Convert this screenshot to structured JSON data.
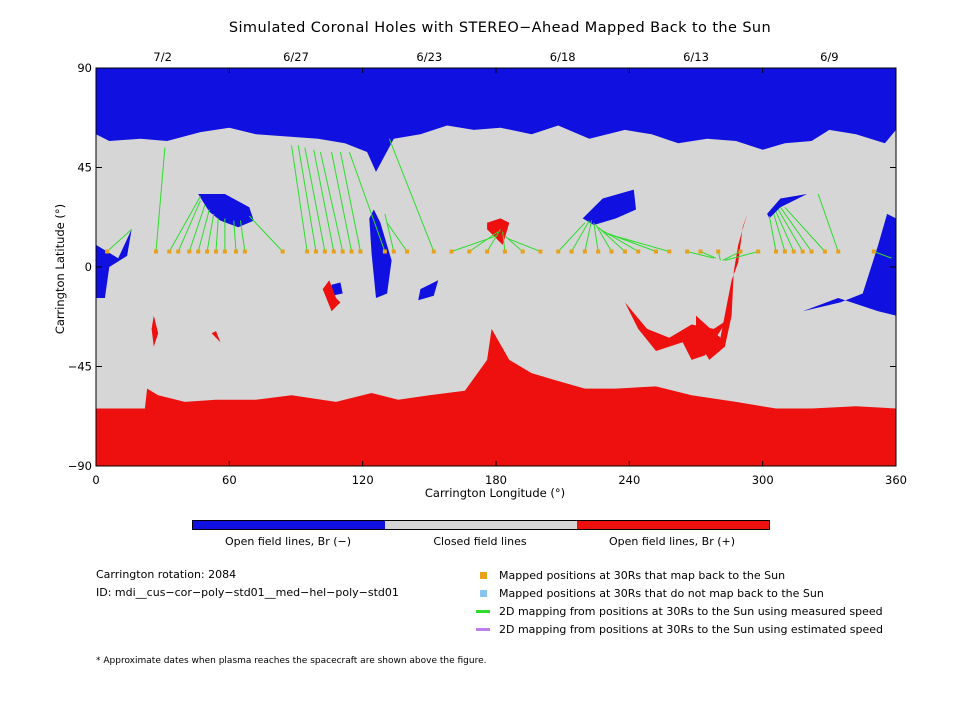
{
  "chart_data": {
    "type": "heatmap",
    "title": "Simulated Coronal Holes with STEREO−Ahead Mapped Back to the Sun",
    "xlabel": "Carrington Longitude (°)",
    "ylabel": "Carrington Latitude (°)",
    "xlim": [
      0,
      360
    ],
    "ylim": [
      -90,
      90
    ],
    "xticks": [
      "0",
      "60",
      "120",
      "180",
      "240",
      "300",
      "360"
    ],
    "yticks": [
      "−90",
      "−45",
      "0",
      "45",
      "90"
    ],
    "top_axis_dates": [
      {
        "label": "7/2",
        "lon": 30
      },
      {
        "label": "6/27",
        "lon": 90
      },
      {
        "label": "6/23",
        "lon": 150
      },
      {
        "label": "6/18",
        "lon": 210
      },
      {
        "label": "6/13",
        "lon": 270
      },
      {
        "label": "6/9",
        "lon": 330
      }
    ],
    "categories": [
      "Open field lines, Br (−)",
      "Closed field lines",
      "Open field lines, Br (+)"
    ],
    "colors": {
      "open_negative": "#1010e0",
      "closed": "#d6d6d6",
      "open_positive": "#ee0f0f",
      "mapped": "#e6a21a",
      "unmapped": "#87c4ee",
      "measured": "#2edc2e",
      "estimated": "#bb80ee"
    },
    "mapping_lines": [
      {
        "lon30": 5,
        "lat30": 7,
        "lon": 16,
        "lat": 17
      },
      {
        "lon30": 27,
        "lat30": 7,
        "lon": 31,
        "lat": 54
      },
      {
        "lon30": 33,
        "lat30": 7,
        "lon": 47,
        "lat": 32
      },
      {
        "lon30": 37,
        "lat30": 7,
        "lon": 47,
        "lat": 30
      },
      {
        "lon30": 42,
        "lat30": 7,
        "lon": 49,
        "lat": 28
      },
      {
        "lon30": 46,
        "lat30": 7,
        "lon": 51,
        "lat": 26
      },
      {
        "lon30": 50,
        "lat30": 7,
        "lon": 53,
        "lat": 24
      },
      {
        "lon30": 54,
        "lat30": 7,
        "lon": 55,
        "lat": 22
      },
      {
        "lon30": 58,
        "lat30": 7,
        "lon": 58,
        "lat": 22
      },
      {
        "lon30": 63,
        "lat30": 7,
        "lon": 62,
        "lat": 21
      },
      {
        "lon30": 67,
        "lat30": 7,
        "lon": 65,
        "lat": 21
      },
      {
        "lon30": 84,
        "lat30": 7,
        "lon": 69,
        "lat": 23
      },
      {
        "lon30": 95,
        "lat30": 7,
        "lon": 88,
        "lat": 55
      },
      {
        "lon30": 99,
        "lat30": 7,
        "lon": 91,
        "lat": 55
      },
      {
        "lon30": 103,
        "lat30": 7,
        "lon": 94,
        "lat": 54
      },
      {
        "lon30": 107,
        "lat30": 7,
        "lon": 98,
        "lat": 53
      },
      {
        "lon30": 111,
        "lat30": 7,
        "lon": 101,
        "lat": 52
      },
      {
        "lon30": 115,
        "lat30": 7,
        "lon": 106,
        "lat": 52
      },
      {
        "lon30": 119,
        "lat30": 7,
        "lon": 110,
        "lat": 52
      },
      {
        "lon30": 130,
        "lat30": 7,
        "lon": 114,
        "lat": 52
      },
      {
        "lon30": 134,
        "lat30": 7,
        "lon": 130,
        "lat": 24
      },
      {
        "lon30": 140,
        "lat30": 7,
        "lon": 131,
        "lat": 20
      },
      {
        "lon30": 152,
        "lat30": 7,
        "lon": 132,
        "lat": 58
      },
      {
        "lon30": 160,
        "lat30": 7,
        "lon": 180,
        "lat": 14
      },
      {
        "lon30": 168,
        "lat30": 7,
        "lon": 181,
        "lat": 16
      },
      {
        "lon30": 176,
        "lat30": 7,
        "lon": 182,
        "lat": 17
      },
      {
        "lon30": 184,
        "lat30": 7,
        "lon": 183,
        "lat": 16
      },
      {
        "lon30": 192,
        "lat30": 7,
        "lon": 184,
        "lat": 14
      },
      {
        "lon30": 200,
        "lat30": 7,
        "lon": 185,
        "lat": 13
      },
      {
        "lon30": 208,
        "lat30": 7,
        "lon": 220,
        "lat": 20
      },
      {
        "lon30": 214,
        "lat30": 7,
        "lon": 222,
        "lat": 21
      },
      {
        "lon30": 220,
        "lat30": 7,
        "lon": 223,
        "lat": 21
      },
      {
        "lon30": 226,
        "lat30": 7,
        "lon": 224,
        "lat": 20
      },
      {
        "lon30": 232,
        "lat30": 7,
        "lon": 225,
        "lat": 19
      },
      {
        "lon30": 238,
        "lat30": 7,
        "lon": 226,
        "lat": 18
      },
      {
        "lon30": 244,
        "lat30": 7,
        "lon": 227,
        "lat": 17
      },
      {
        "lon30": 252,
        "lat30": 7,
        "lon": 228,
        "lat": 16
      },
      {
        "lon30": 258,
        "lat30": 7,
        "lon": 230,
        "lat": 15
      },
      {
        "lon30": 266,
        "lat30": 7,
        "lon": 278,
        "lat": 4
      },
      {
        "lon30": 272,
        "lat30": 7,
        "lon": 279,
        "lat": 4
      },
      {
        "lon30": 280,
        "lat30": 7,
        "lon": 281,
        "lat": 3
      },
      {
        "lon30": 290,
        "lat30": 7,
        "lon": 282,
        "lat": 3
      },
      {
        "lon30": 298,
        "lat30": 7,
        "lon": 283,
        "lat": 3
      },
      {
        "lon30": 306,
        "lat30": 7,
        "lon": 303,
        "lat": 23
      },
      {
        "lon30": 310,
        "lat30": 7,
        "lon": 305,
        "lat": 24
      },
      {
        "lon30": 314,
        "lat30": 7,
        "lon": 306,
        "lat": 25
      },
      {
        "lon30": 318,
        "lat30": 7,
        "lon": 307,
        "lat": 26
      },
      {
        "lon30": 322,
        "lat30": 7,
        "lon": 308,
        "lat": 27
      },
      {
        "lon30": 328,
        "lat30": 7,
        "lon": 310,
        "lat": 27
      },
      {
        "lon30": 334,
        "lat30": 7,
        "lon": 325,
        "lat": 33
      },
      {
        "lon30": 350,
        "lat30": 7,
        "lon": 358,
        "lat": 4
      }
    ],
    "grid": false
  },
  "colorbar": {
    "labels": [
      "Open field lines, Br (−)",
      "Closed field lines",
      "Open field lines, Br (+)"
    ]
  },
  "info": {
    "rotation": "Carrington rotation: 2084",
    "id": "ID: mdi__cus−cor−poly−std01__med−hel−poly−std01"
  },
  "legend": {
    "mapped": "Mapped positions at 30Rs that map back to the Sun",
    "unmapped": "Mapped positions at 30Rs that do not map back to the Sun",
    "measured": "2D mapping from positions at 30Rs to the Sun using measured speed",
    "estimated": "2D mapping from positions at 30Rs to the Sun using estimated speed"
  },
  "footnote": "* Approximate dates when plasma reaches the spacecraft are shown above the figure."
}
